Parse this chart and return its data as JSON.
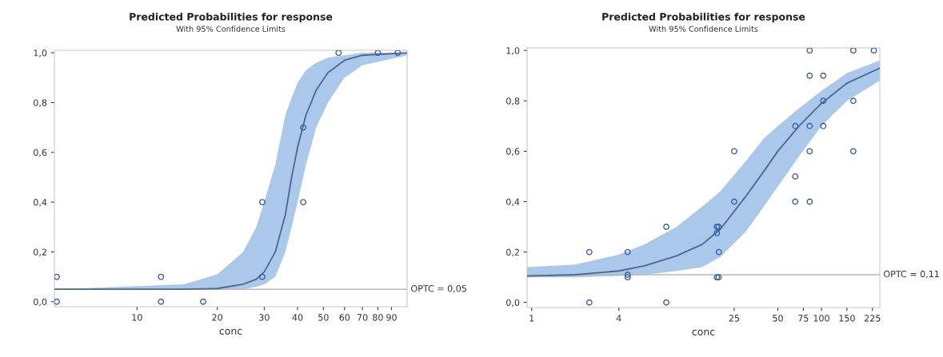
{
  "chart_data": [
    {
      "type": "line",
      "title": "Predicted Probabilities for response",
      "subtitle": "With 95% Confidence Limits",
      "xlabel": "conc",
      "log": "x",
      "xlim": [
        4.9,
        103
      ],
      "xticks": [
        10,
        20,
        30,
        40,
        50,
        60,
        70,
        80,
        90
      ],
      "ylim": [
        -0.02,
        1.01
      ],
      "yticks": [
        {
          "value": 0,
          "label": "0,0"
        },
        {
          "value": 0.2,
          "label": "0,2"
        },
        {
          "value": 0.4,
          "label": "0,4"
        },
        {
          "value": 0.6,
          "label": "0,6"
        },
        {
          "value": 0.8,
          "label": "0,8"
        },
        {
          "value": 1,
          "label": "1,0"
        }
      ],
      "grid": false,
      "legend": false,
      "ref_lines": [
        {
          "axis": "y",
          "value": 0.05,
          "label": "OPTC = 0,05",
          "color": "#b8b8b8"
        }
      ],
      "series": [
        {
          "color": "#4d6890",
          "marker": "none",
          "x": [
            4.9,
            15,
            20,
            25,
            28,
            30,
            33,
            36,
            38,
            40,
            43,
            47,
            52,
            60,
            70,
            103
          ],
          "values": [
            0.05,
            0.05,
            0.053,
            0.07,
            0.09,
            0.12,
            0.2,
            0.35,
            0.5,
            0.62,
            0.75,
            0.85,
            0.92,
            0.97,
            0.99,
            1.0
          ],
          "lower": [
            0.05,
            0.05,
            0.05,
            0.05,
            0.06,
            0.07,
            0.1,
            0.2,
            0.3,
            0.4,
            0.55,
            0.7,
            0.8,
            0.9,
            0.95,
            0.99
          ],
          "upper": [
            0.05,
            0.07,
            0.11,
            0.2,
            0.3,
            0.4,
            0.55,
            0.75,
            0.82,
            0.88,
            0.93,
            0.96,
            0.98,
            0.99,
            1.0,
            1.0
          ]
        },
        {
          "type": "scatter",
          "color": "#3a5fb0",
          "marker": "circle",
          "x": [
            5,
            5,
            12.3,
            12.3,
            17.7,
            29.5,
            29.5,
            42,
            42,
            57,
            80,
            95
          ],
          "values": [
            0.1,
            0,
            0.1,
            0,
            0,
            0.4,
            0.1,
            0.7,
            0.4,
            1,
            1,
            1
          ]
        }
      ]
    },
    {
      "type": "line",
      "title": "Predicted Probabilities for response",
      "subtitle": "With 95% Confidence Limits",
      "xlabel": "conc",
      "log": "x",
      "xlim": [
        0.93,
        253
      ],
      "xticks": [
        1,
        4,
        25,
        50,
        75,
        100,
        150,
        225
      ],
      "ylim": [
        -0.02,
        1.01
      ],
      "yticks": [
        {
          "value": 0,
          "label": "0,0"
        },
        {
          "value": 0.2,
          "label": "0,2"
        },
        {
          "value": 0.4,
          "label": "0,4"
        },
        {
          "value": 0.6,
          "label": "0,6"
        },
        {
          "value": 0.8,
          "label": "0,8"
        },
        {
          "value": 1,
          "label": "1,0"
        }
      ],
      "grid": false,
      "legend": false,
      "ref_lines": [
        {
          "axis": "y",
          "value": 0.11,
          "label": "OPTC = 0,11",
          "color": "#b8b8b8"
        }
      ],
      "series": [
        {
          "color": "#4d6890",
          "marker": "none",
          "x": [
            0.93,
            2,
            4,
            6,
            10,
            15,
            20,
            30,
            40,
            50,
            70,
            100,
            150,
            253
          ],
          "values": [
            0.105,
            0.11,
            0.125,
            0.145,
            0.185,
            0.23,
            0.29,
            0.42,
            0.52,
            0.6,
            0.7,
            0.79,
            0.87,
            0.93
          ],
          "lower": [
            0.1,
            0.1,
            0.105,
            0.11,
            0.125,
            0.14,
            0.18,
            0.28,
            0.38,
            0.46,
            0.58,
            0.7,
            0.8,
            0.88
          ],
          "upper": [
            0.14,
            0.15,
            0.19,
            0.23,
            0.3,
            0.38,
            0.44,
            0.56,
            0.65,
            0.7,
            0.77,
            0.84,
            0.91,
            0.96
          ]
        },
        {
          "type": "scatter",
          "color": "#3a5fb0",
          "marker": "circle",
          "x": [
            2.5,
            2.5,
            4.6,
            4.6,
            4.6,
            8.5,
            8.5,
            19,
            19.5,
            19,
            19.6,
            19,
            19.5,
            25,
            25,
            66,
            66,
            66,
            83,
            83,
            83,
            83,
            83,
            103,
            103,
            103,
            166,
            166,
            166,
            230
          ],
          "values": [
            0.2,
            0,
            0.2,
            0.11,
            0.1,
            0.3,
            0,
            0.3,
            0.3,
            0.275,
            0.2,
            0.1,
            0.1,
            0.6,
            0.4,
            0.7,
            0.5,
            0.4,
            1,
            0.9,
            0.7,
            0.6,
            0.4,
            0.9,
            0.8,
            0.7,
            1,
            0.8,
            0.6,
            1
          ]
        }
      ]
    }
  ]
}
